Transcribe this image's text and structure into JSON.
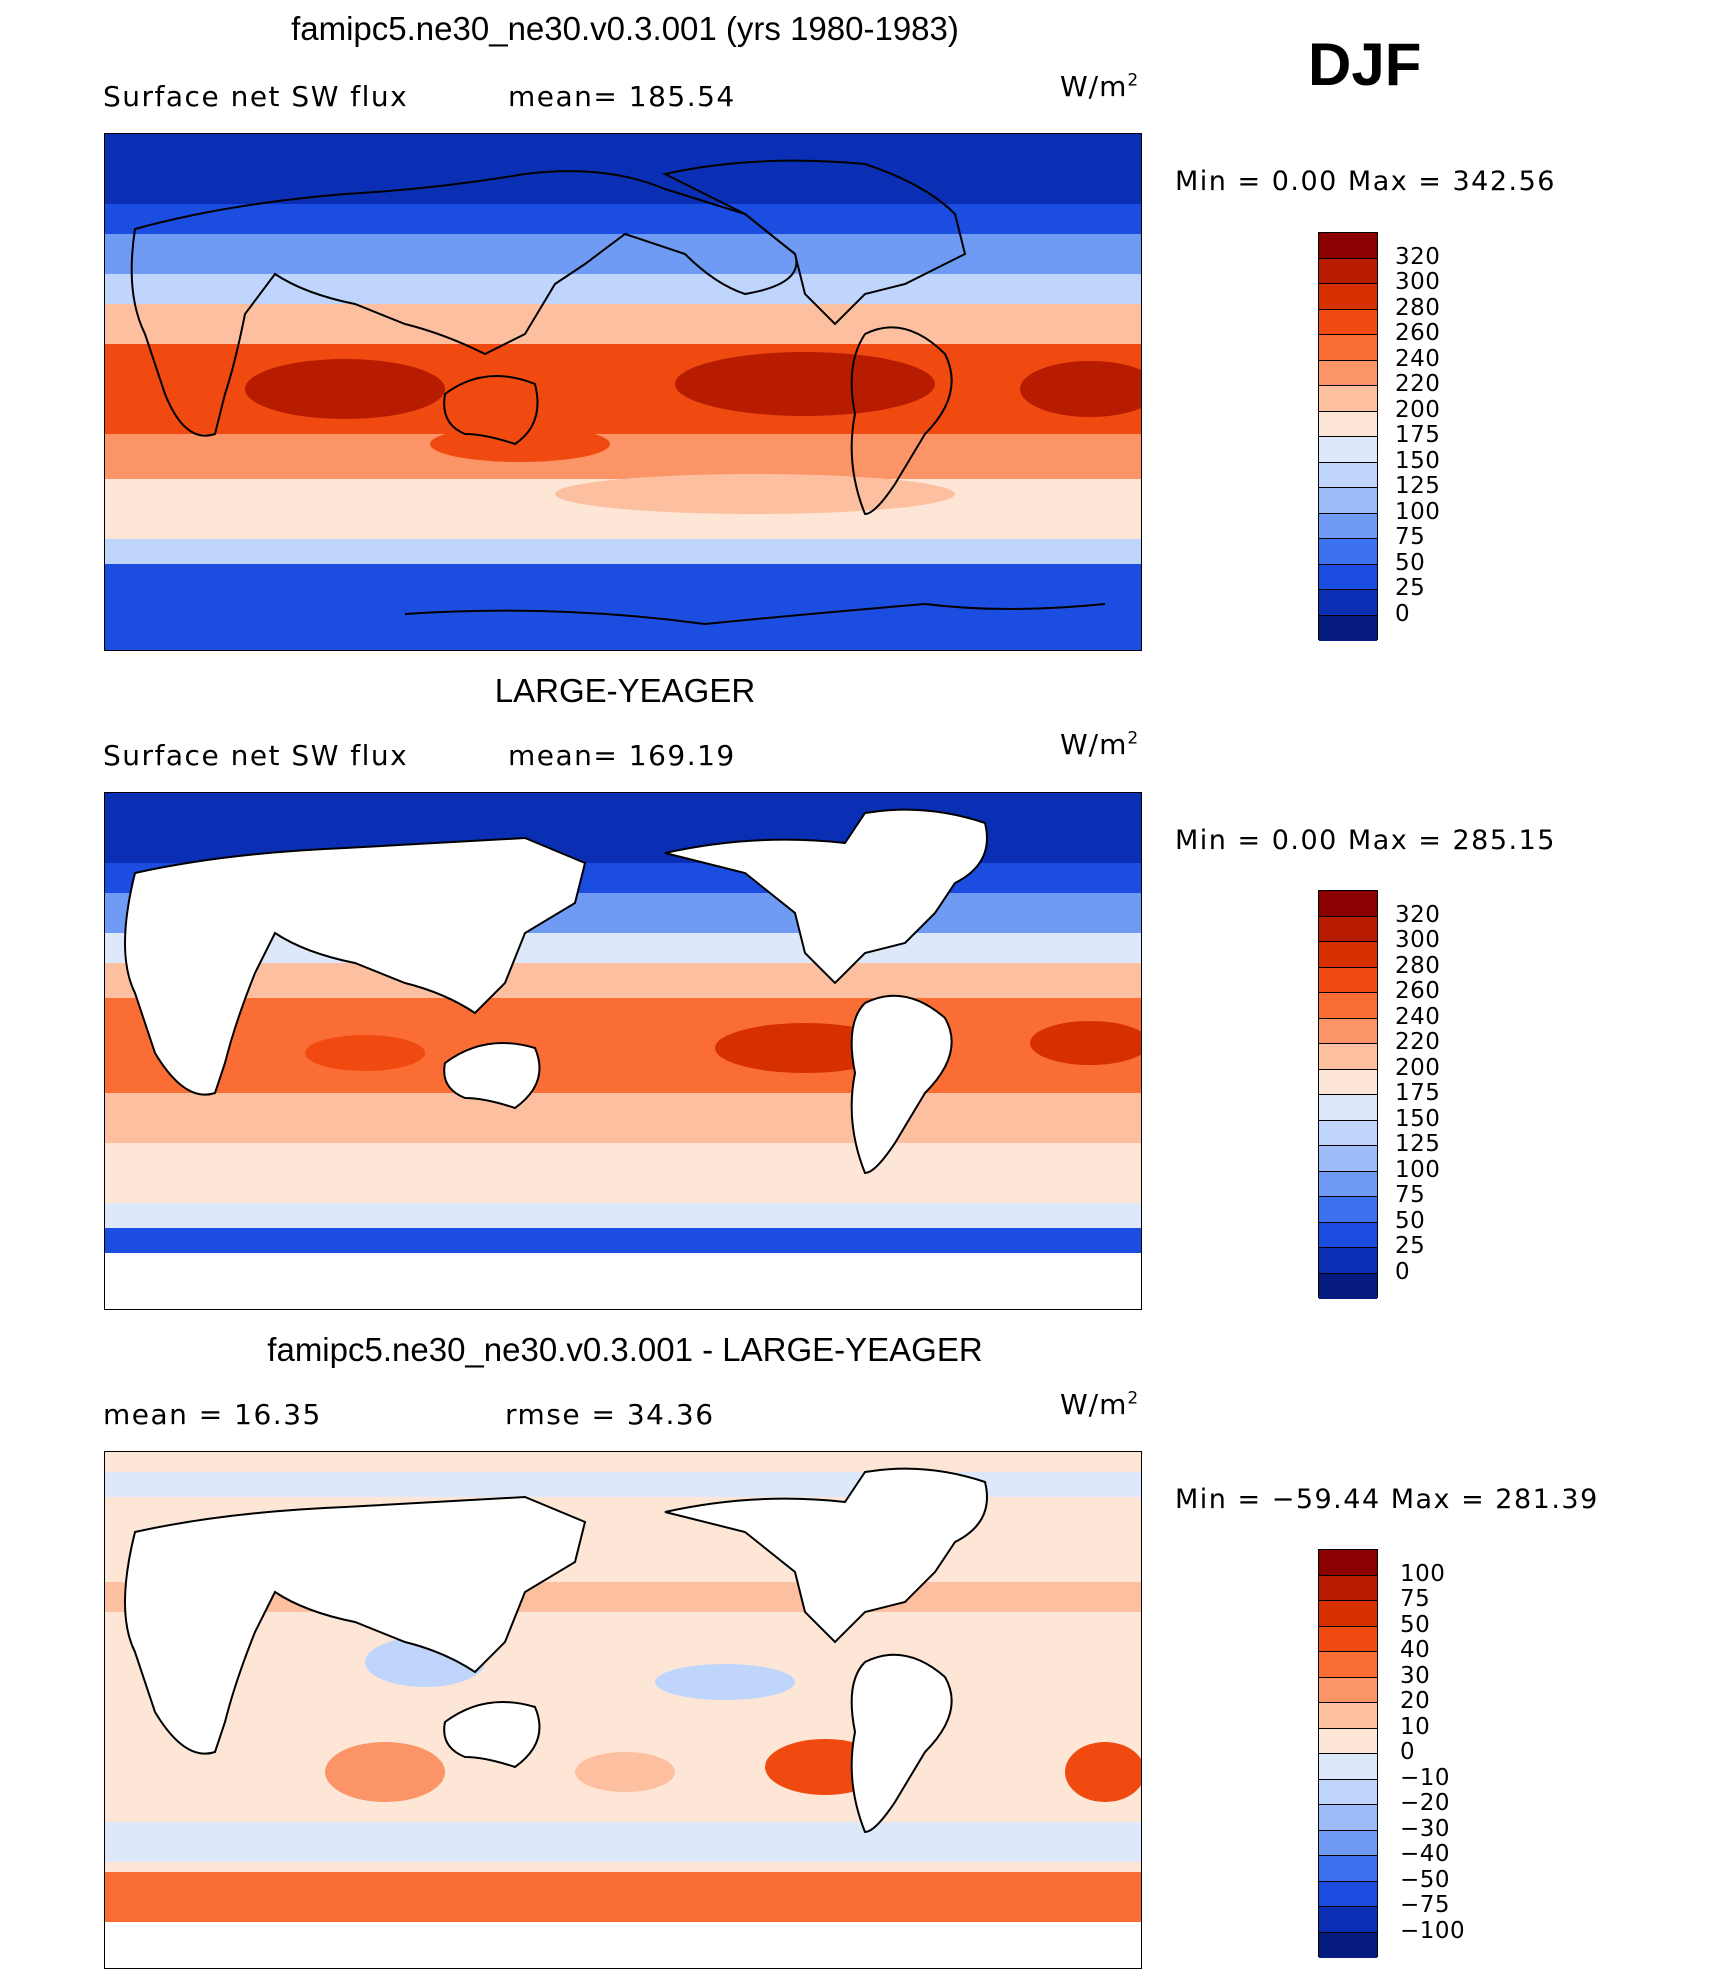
{
  "season": "DJF",
  "units": "W/m",
  "units_sup": "2",
  "panels": [
    {
      "title": "famipc5.ne30_ne30.v0.3.001 (yrs 1980-1983)",
      "left_label": "Surface net SW flux",
      "right_label": "mean= 185.54",
      "minmax": "Min =     0.00 Max = 342.56"
    },
    {
      "title": "LARGE-YEAGER",
      "left_label": "Surface net SW flux",
      "right_label": "mean= 169.19",
      "minmax": "Min =     0.00 Max = 285.15"
    },
    {
      "title": "famipc5.ne30_ne30.v0.3.001 - LARGE-YEAGER",
      "left_label": "mean =    16.35",
      "right_label": "rmse =    34.36",
      "minmax": "Min = −59.44 Max = 281.39"
    }
  ],
  "chart_data": [
    {
      "type": "heatmap",
      "title": "famipc5.ne30_ne30.v0.3.001 (yrs 1980-1983)",
      "variable": "Surface net SW flux",
      "units": "W/m2",
      "mean": 185.54,
      "min": 0.0,
      "max": 342.56,
      "colorbar_levels": [
        "320",
        "300",
        "280",
        "260",
        "240",
        "220",
        "200",
        "175",
        "150",
        "125",
        "100",
        "75",
        "50",
        "25",
        "0"
      ],
      "colorbar_colors": [
        "#8b0000",
        "#b71c00",
        "#d73000",
        "#f04a10",
        "#fa6e35",
        "#fb9466",
        "#fcc0a0",
        "#fde6d6",
        "#dde9fb",
        "#bfd5fb",
        "#9ebdf8",
        "#6f9bf5",
        "#3d72ee",
        "#1a4de0",
        "#0a2fb5",
        "#051b7d"
      ],
      "grid": false
    },
    {
      "type": "heatmap",
      "title": "LARGE-YEAGER",
      "variable": "Surface net SW flux",
      "units": "W/m2",
      "mean": 169.19,
      "min": 0.0,
      "max": 285.15,
      "colorbar_levels": [
        "320",
        "300",
        "280",
        "260",
        "240",
        "220",
        "200",
        "175",
        "150",
        "125",
        "100",
        "75",
        "50",
        "25",
        "0"
      ],
      "colorbar_colors": [
        "#8b0000",
        "#b71c00",
        "#d73000",
        "#f04a10",
        "#fa6e35",
        "#fb9466",
        "#fcc0a0",
        "#fde6d6",
        "#dde9fb",
        "#bfd5fb",
        "#9ebdf8",
        "#6f9bf5",
        "#3d72ee",
        "#1a4de0",
        "#0a2fb5",
        "#051b7d"
      ],
      "grid": false
    },
    {
      "type": "heatmap",
      "title": "famipc5.ne30_ne30.v0.3.001 - LARGE-YEAGER",
      "units": "W/m2",
      "mean": 16.35,
      "rmse": 34.36,
      "min": -59.44,
      "max": 281.39,
      "colorbar_levels": [
        "100",
        "75",
        "50",
        "40",
        "30",
        "20",
        "10",
        "0",
        "−10",
        "−20",
        "−30",
        "−40",
        "−50",
        "−75",
        "−100"
      ],
      "colorbar_colors": [
        "#8b0000",
        "#b71c00",
        "#d73000",
        "#f04a10",
        "#fa6e35",
        "#fb9466",
        "#fcc0a0",
        "#fde6d6",
        "#dde9fb",
        "#bfd5fb",
        "#9ebdf8",
        "#6f9bf5",
        "#3d72ee",
        "#1a4de0",
        "#0a2fb5",
        "#051b7d"
      ],
      "grid": false
    }
  ]
}
